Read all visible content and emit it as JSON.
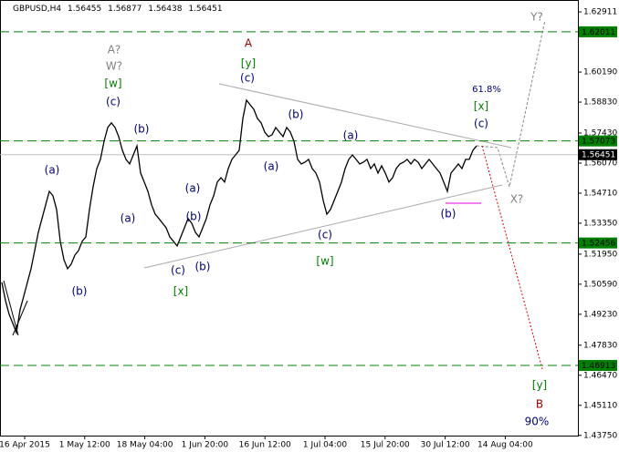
{
  "chart_data": {
    "type": "line",
    "symbol": "GBPUSD,H4",
    "ohlc": [
      1.56455,
      1.56877,
      1.56438,
      1.56451
    ],
    "ylim": [
      1.4374,
      1.6345
    ],
    "yticks": [
      1.62911,
      {
        "value": 1.6019,
        "label": "1.60190"
      },
      {
        "value": 1.5883,
        "label": "1.58830"
      },
      {
        "value": 1.5743,
        "label": "1.57430"
      },
      {
        "value": 1.5607,
        "label": "1.56070"
      },
      {
        "value": 1.5471,
        "label": "1.54710"
      },
      {
        "value": 1.5335,
        "label": "1.53350"
      },
      {
        "value": 1.5195,
        "label": "1.51950"
      },
      {
        "value": 1.5059,
        "label": "1.50590"
      },
      {
        "value": 1.4923,
        "label": "1.49230"
      },
      {
        "value": 1.4783,
        "label": "1.47830"
      },
      {
        "value": 1.4647,
        "label": "1.46470"
      },
      {
        "value": 1.4511,
        "label": "1.45110"
      },
      {
        "value": 1.4375,
        "label": "1.43750"
      }
    ],
    "x_labels": [
      "16 Apr 2015",
      "1 May 12:00",
      "18 May 04:00",
      "1 Jun 20:00",
      "16 Jun 12:00",
      "1 Jul 04:00",
      "15 Jul 20:00",
      "30 Jul 12:00",
      "14 Aug 04:00"
    ],
    "levels": [
      1.62011,
      1.57073,
      1.52456,
      1.46913
    ],
    "level_color": "#008000",
    "series": [
      {
        "name": "GBPUSD,H4",
        "color": "#000000",
        "values": [
          1.5067,
          1.4985,
          1.4923,
          1.4882,
          1.484,
          1.4944,
          1.5005,
          1.5067,
          1.5129,
          1.5211,
          1.5294,
          1.5356,
          1.5418,
          1.5479,
          1.5459,
          1.5397,
          1.5253,
          1.517,
          1.5129,
          1.515,
          1.5191,
          1.5211,
          1.5253,
          1.5273,
          1.5397,
          1.55,
          1.5582,
          1.5624,
          1.5706,
          1.5768,
          1.5789,
          1.5768,
          1.5727,
          1.5665,
          1.5624,
          1.5603,
          1.5644,
          1.5685,
          1.5562,
          1.5521,
          1.5479,
          1.5418,
          1.5376,
          1.5356,
          1.5335,
          1.5314,
          1.5273,
          1.5253,
          1.5232,
          1.5273,
          1.5314,
          1.5356,
          1.5335,
          1.5294,
          1.5273,
          1.5314,
          1.5356,
          1.5418,
          1.5459,
          1.5521,
          1.5541,
          1.5521,
          1.5582,
          1.5624,
          1.5644,
          1.5665,
          1.5809,
          1.5892,
          1.5871,
          1.585,
          1.5809,
          1.5789,
          1.5747,
          1.5727,
          1.5735,
          1.5768,
          1.5747,
          1.5727,
          1.5768,
          1.5747,
          1.5706,
          1.5624,
          1.5603,
          1.5611,
          1.5624,
          1.5582,
          1.5562,
          1.5521,
          1.5438,
          1.5376,
          1.5397,
          1.5438,
          1.5479,
          1.5521,
          1.5582,
          1.5624,
          1.5644,
          1.5624,
          1.5603,
          1.5611,
          1.5624,
          1.5582,
          1.5603,
          1.5562,
          1.5595,
          1.5562,
          1.5521,
          1.5541,
          1.5582,
          1.5603,
          1.5611,
          1.5624,
          1.5603,
          1.5624,
          1.5611,
          1.5582,
          1.5603,
          1.5624,
          1.5603,
          1.5582,
          1.5562,
          1.5521,
          1.5479,
          1.5562,
          1.5582,
          1.5603,
          1.5582,
          1.5624,
          1.5624,
          1.5665,
          1.5685
        ]
      }
    ],
    "annotations": [
      {
        "text": "A?",
        "color": "#808080"
      },
      {
        "text": "W?",
        "color": "#808080"
      },
      {
        "text": "[w]",
        "color": "#008000"
      },
      {
        "text": "(c)",
        "color": "#000080"
      },
      {
        "text": "(b)",
        "color": "#000080"
      },
      {
        "text": "(a)",
        "color": "#000080"
      },
      {
        "text": "(a)",
        "color": "#000080"
      },
      {
        "text": "(b)",
        "color": "#000080"
      },
      {
        "text": "(a)",
        "color": "#000080"
      },
      {
        "text": "(b)",
        "color": "#000080"
      },
      {
        "text": "(c)",
        "color": "#000080"
      },
      {
        "text": "(b)",
        "color": "#000080"
      },
      {
        "text": "[x]",
        "color": "#008000"
      },
      {
        "text": "A",
        "color": "#a00000"
      },
      {
        "text": "[y]",
        "color": "#008000"
      },
      {
        "text": "(c)",
        "color": "#000080"
      },
      {
        "text": "(b)",
        "color": "#000080"
      },
      {
        "text": "(a)",
        "color": "#000080"
      },
      {
        "text": "(a)",
        "color": "#000080"
      },
      {
        "text": "(c)",
        "color": "#000080"
      },
      {
        "text": "[w]",
        "color": "#008000"
      },
      {
        "text": "(b)",
        "color": "#000080"
      },
      {
        "text": "61.8%",
        "color": "#000080"
      },
      {
        "text": "[x]",
        "color": "#008000"
      },
      {
        "text": "(c)",
        "color": "#000080"
      },
      {
        "text": "Y?",
        "color": "#808080"
      },
      {
        "text": "X?",
        "color": "#808080"
      },
      {
        "text": "[y]",
        "color": "#008000"
      },
      {
        "text": "B",
        "color": "#a00000"
      },
      {
        "text": "90%",
        "color": "#000080"
      }
    ]
  }
}
